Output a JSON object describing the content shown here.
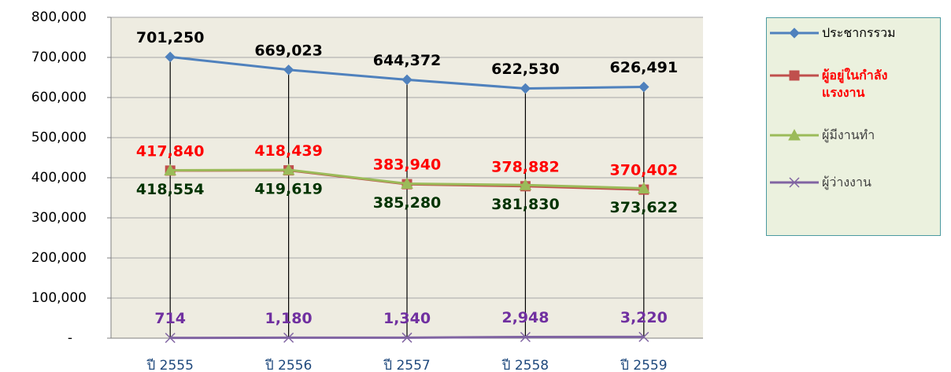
{
  "chart_data": {
    "type": "line",
    "categories": [
      "ปี 2555",
      "ปี 2556",
      "ปี 2557",
      "ปี 2558",
      "ปี 2559"
    ],
    "series": [
      {
        "name": "ประชากรรวม",
        "color": "#4f81bd",
        "marker": "diamond",
        "label_color": "#000000",
        "label_position": "above",
        "values": [
          701250,
          669023,
          644372,
          622530,
          626491
        ],
        "value_labels": [
          "701,250",
          "669,023",
          "644,372",
          "622,530",
          "626,491"
        ]
      },
      {
        "name": "ผู้อยู่ในกำลังแรงงาน",
        "color": "#c0504d",
        "marker": "square",
        "label_color": "#ff0000",
        "label_position": "above",
        "values": [
          417840,
          418439,
          383940,
          378882,
          370402
        ],
        "value_labels": [
          "417,840",
          "418,439",
          "383,940",
          "378,882",
          "370,402"
        ]
      },
      {
        "name": "ผู้มีงานทำ",
        "color": "#9bbb59",
        "marker": "triangle",
        "label_color": "#003300",
        "label_position": "below",
        "values": [
          418554,
          419619,
          385280,
          381830,
          373622
        ],
        "value_labels": [
          "418,554",
          "419,619",
          "385,280",
          "381,830",
          "373,622"
        ]
      },
      {
        "name": "ผู้ว่างงาน",
        "color": "#8064a2",
        "marker": "x",
        "label_color": "#7030a0",
        "label_position": "above",
        "values": [
          714,
          1180,
          1340,
          2948,
          3220
        ],
        "value_labels": [
          "714",
          "1,180",
          "1,340",
          "2,948",
          "3,220"
        ]
      }
    ],
    "ylim": [
      0,
      800000
    ],
    "yticks": [
      {
        "value": 0,
        "label": "-"
      },
      {
        "value": 100000,
        "label": "100,000"
      },
      {
        "value": 200000,
        "label": "200,000"
      },
      {
        "value": 300000,
        "label": "300,000"
      },
      {
        "value": 400000,
        "label": "400,000"
      },
      {
        "value": 500000,
        "label": "500,000"
      },
      {
        "value": 600000,
        "label": "600,000"
      },
      {
        "value": 700000,
        "label": "700,000"
      },
      {
        "value": 800000,
        "label": "800,000"
      }
    ],
    "grid": true,
    "legend": "right",
    "drop_lines": true
  }
}
